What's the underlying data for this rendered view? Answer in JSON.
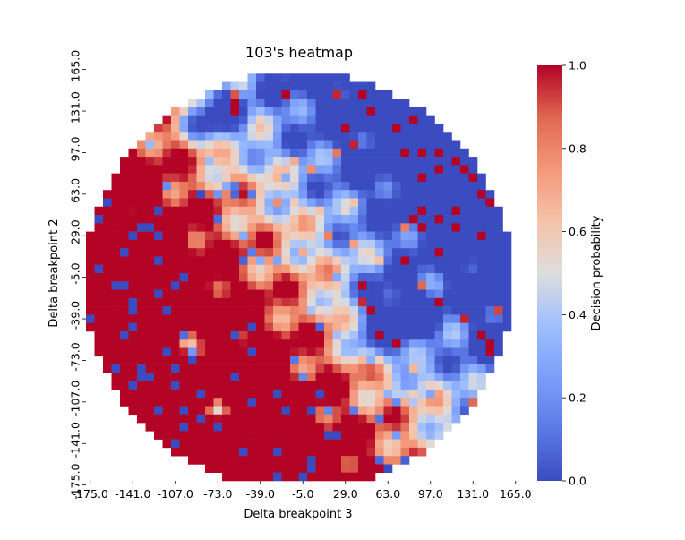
{
  "chart_data": {
    "type": "heatmap",
    "title": "103's heatmap",
    "xlabel": "Delta breakpoint 3",
    "ylabel": "Delta breakpoint 2",
    "x_tick_labels": [
      "-175.0",
      "-141.0",
      "-107.0",
      "-73.0",
      "-39.0",
      "-5.0",
      "29.0",
      "63.0",
      "97.0",
      "131.0",
      "165.0"
    ],
    "y_tick_labels": [
      "165.0",
      "131.0",
      "97.0",
      "63.0",
      "29.0",
      "-5.0",
      "-39.0",
      "-73.0",
      "-107.0",
      "-141.0",
      "-175.0"
    ],
    "x_range": [
      -175,
      175
    ],
    "y_range": [
      -175,
      165
    ],
    "grid_step": 6.8,
    "colormap": "coolwarm",
    "colorbar": {
      "label": "Decision probability",
      "range": [
        0.0,
        1.0
      ],
      "tick_labels": [
        "0.0",
        "0.2",
        "0.4",
        "0.6",
        "0.8",
        "1.0"
      ],
      "colors": [
        "#3b4cc0",
        "#dddddd",
        "#b40426"
      ]
    },
    "cells": {
      "row_order": "top (165.0) to bottom (-175.0)",
      "column_order": "left (-175.0) to right (165.0)",
      "masked": "outside roughly circular region centered near (0, -5) with radius ~165; values are approximate",
      "values": []
    }
  }
}
